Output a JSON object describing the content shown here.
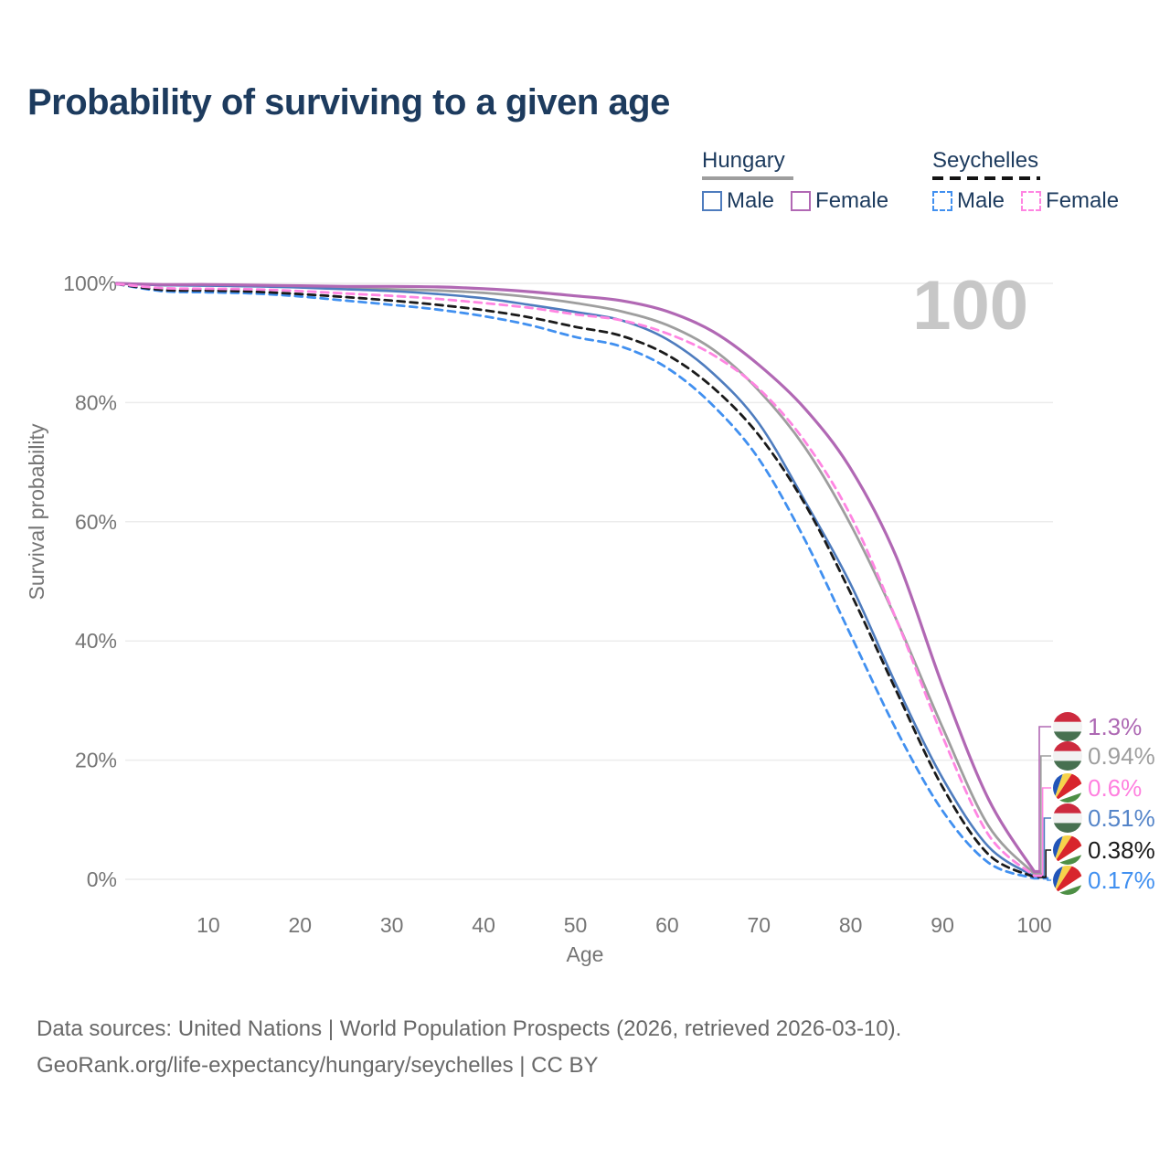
{
  "header": {
    "title": "Probability of surviving to a given age"
  },
  "legend": {
    "groups": [
      {
        "label": "Hungary",
        "line_style": "solid",
        "line_color": "#9e9e9e",
        "items": [
          {
            "label": "Male",
            "color": "#4e7cbe",
            "dashed": false
          },
          {
            "label": "Female",
            "color": "#b168b4",
            "dashed": false
          }
        ]
      },
      {
        "label": "Seychelles",
        "line_style": "dashed",
        "line_color": "#141414",
        "items": [
          {
            "label": "Male",
            "color": "#4190f0",
            "dashed": true
          },
          {
            "label": "Female",
            "color": "#ff85e2",
            "dashed": true
          }
        ]
      }
    ]
  },
  "chart_data": {
    "type": "line",
    "title": "Probability of surviving to a given age",
    "xlabel": "Age",
    "ylabel": "Survival probability",
    "xlim": [
      0,
      100
    ],
    "ylim": [
      0,
      100
    ],
    "grid": "horizontal-only",
    "watermark": "100",
    "x_ticks": [
      {
        "value": 10,
        "label": "10"
      },
      {
        "value": 20,
        "label": "20"
      },
      {
        "value": 30,
        "label": "30"
      },
      {
        "value": 40,
        "label": "40"
      },
      {
        "value": 50,
        "label": "50"
      },
      {
        "value": 60,
        "label": "60"
      },
      {
        "value": 70,
        "label": "70"
      },
      {
        "value": 80,
        "label": "80"
      },
      {
        "value": 90,
        "label": "90"
      },
      {
        "value": 100,
        "label": "100"
      }
    ],
    "y_ticks": [
      {
        "value": 0,
        "label": "0%"
      },
      {
        "value": 20,
        "label": "20%"
      },
      {
        "value": 40,
        "label": "40%"
      },
      {
        "value": 60,
        "label": "60%"
      },
      {
        "value": 80,
        "label": "80%"
      },
      {
        "value": 100,
        "label": "100%"
      }
    ],
    "x": [
      0,
      5,
      10,
      15,
      20,
      25,
      30,
      35,
      40,
      45,
      50,
      55,
      60,
      65,
      70,
      75,
      80,
      85,
      90,
      95,
      100
    ],
    "series": [
      {
        "id": "hungary-total",
        "name": "Hungary",
        "color": "#9e9e9e",
        "dashed": false,
        "width": 2.8,
        "values": [
          100,
          99.7,
          99.7,
          99.6,
          99.4,
          99.2,
          99.0,
          98.8,
          98.4,
          97.7,
          96.7,
          95.3,
          93.0,
          88.9,
          82.0,
          72.5,
          59.5,
          43.5,
          25.5,
          9.0,
          0.94
        ]
      },
      {
        "id": "hungary-male",
        "name": "Hungary Male",
        "color": "#4e7cbe",
        "dashed": false,
        "width": 2.6,
        "values": [
          100,
          99.7,
          99.6,
          99.5,
          99.3,
          99.0,
          98.7,
          98.2,
          97.5,
          96.4,
          95.2,
          93.8,
          90.6,
          84.9,
          76.5,
          63.5,
          49.5,
          32.5,
          17.0,
          5.5,
          0.51
        ]
      },
      {
        "id": "hungary-female",
        "name": "Hungary Female",
        "color": "#b168b4",
        "dashed": false,
        "width": 3.2,
        "values": [
          100,
          99.8,
          99.8,
          99.7,
          99.6,
          99.5,
          99.5,
          99.4,
          99.1,
          98.6,
          97.9,
          97.1,
          95.3,
          91.9,
          86.3,
          79.0,
          68.9,
          54.0,
          32.5,
          13.5,
          1.3
        ]
      },
      {
        "id": "seychelles-male",
        "name": "Seychelles Male",
        "color": "#4190f0",
        "dashed": true,
        "width": 2.8,
        "values": [
          99.9,
          98.7,
          98.5,
          98.3,
          97.8,
          97.1,
          96.4,
          95.6,
          94.5,
          93.0,
          91.0,
          89.4,
          85.8,
          79.5,
          70.5,
          57.0,
          41.0,
          25.0,
          11.5,
          2.8,
          0.17
        ]
      },
      {
        "id": "seychelles-total",
        "name": "Seychelles",
        "color": "#1a1a1a",
        "dashed": true,
        "width": 2.8,
        "values": [
          99.9,
          98.9,
          98.8,
          98.6,
          98.2,
          97.7,
          97.1,
          96.4,
          95.5,
          94.3,
          92.7,
          91.2,
          88.0,
          82.5,
          74.5,
          63.0,
          48.0,
          31.5,
          15.5,
          4.2,
          0.38
        ]
      },
      {
        "id": "seychelles-female",
        "name": "Seychelles Female",
        "color": "#ff85e2",
        "dashed": true,
        "width": 2.8,
        "values": [
          99.9,
          99.2,
          99.1,
          99.0,
          98.7,
          98.3,
          97.9,
          97.4,
          96.7,
          95.9,
          94.8,
          93.8,
          91.6,
          88.0,
          82.3,
          73.5,
          61.0,
          43.5,
          24.0,
          7.5,
          0.6
        ]
      }
    ],
    "end_labels": [
      {
        "text": "1.3%",
        "series_id": "hungary-female",
        "flag": "hungary",
        "color": "#ad68b3"
      },
      {
        "text": "0.94%",
        "series_id": "hungary-total",
        "flag": "hungary",
        "color": "#9e9e9e"
      },
      {
        "text": "0.6%",
        "series_id": "seychelles-female",
        "flag": "seychelles",
        "color": "#ff80df"
      },
      {
        "text": "0.51%",
        "series_id": "hungary-male",
        "flag": "hungary",
        "color": "#5585c9"
      },
      {
        "text": "0.38%",
        "series_id": "seychelles-total",
        "flag": "seychelles",
        "color": "#1a1a1a"
      },
      {
        "text": "0.17%",
        "series_id": "seychelles-male",
        "flag": "seychelles",
        "color": "#4190f0"
      }
    ],
    "flag_colors": {
      "hungary": [
        "#cd2a3e",
        "#f2f2f2",
        "#477050"
      ],
      "seychelles": [
        "#2255b8",
        "#f6d34b",
        "#d8252c",
        "#ffffff",
        "#4d8f45"
      ]
    }
  },
  "footer": {
    "line1": "Data sources: United Nations | World Population Prospects (2026, retrieved 2026-03-10).",
    "line2": "GeoRank.org/life-expectancy/hungary/seychelles | CC BY"
  }
}
